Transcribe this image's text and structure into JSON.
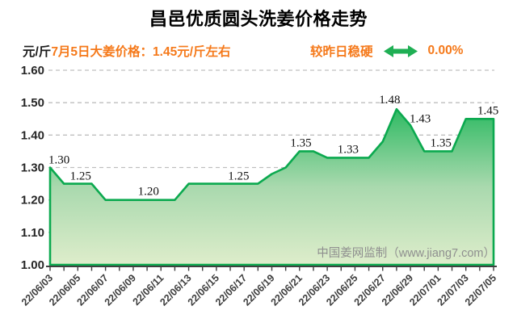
{
  "title": "昌邑优质圆头洗姜价格走势",
  "header": {
    "unit_label": "元/斤",
    "price_note": "7月5日大姜价格：1.45元/斤左右",
    "trend_label": "较昨日稳硬",
    "trend_arrow_icon": "double-headed-horizontal-arrow",
    "trend_percent": "0.00%"
  },
  "watermark": "中国姜网监制（www.jiang7.com）",
  "colors": {
    "accent_orange": "#F5791A",
    "line_green": "#0BA94F",
    "arrow_green": "#1FAF54",
    "fill_top": "#2FBA63",
    "fill_mid": "#A9D9AE",
    "fill_bottom": "#DEEDCB",
    "grid": "#BFBFBF",
    "axis": "#404040",
    "title_black": "#000000"
  },
  "chart_data": {
    "type": "area",
    "title": "昌邑优质圆头洗姜价格走势",
    "ylabel_unit": "元/斤",
    "ylim": [
      1.0,
      1.6
    ],
    "y_ticks": [
      "1.60",
      "1.50",
      "1.40",
      "1.30",
      "1.20",
      "1.10",
      "1.00"
    ],
    "grid": "horizontal-dashed",
    "legend": "none",
    "x_label_every": 2,
    "x": [
      "22/06/03",
      "22/06/04",
      "22/06/05",
      "22/06/06",
      "22/06/07",
      "22/06/08",
      "22/06/09",
      "22/06/10",
      "22/06/11",
      "22/06/12",
      "22/06/13",
      "22/06/14",
      "22/06/15",
      "22/06/16",
      "22/06/17",
      "22/06/18",
      "22/06/19",
      "22/06/20",
      "22/06/21",
      "22/06/22",
      "22/06/23",
      "22/06/24",
      "22/06/25",
      "22/06/26",
      "22/06/27",
      "22/06/28",
      "22/06/29",
      "22/06/30",
      "22/07/01",
      "22/07/02",
      "22/07/03",
      "22/07/04",
      "22/07/05"
    ],
    "values": [
      1.3,
      1.25,
      1.25,
      1.25,
      1.2,
      1.2,
      1.2,
      1.2,
      1.2,
      1.2,
      1.25,
      1.25,
      1.25,
      1.25,
      1.25,
      1.25,
      1.28,
      1.3,
      1.35,
      1.35,
      1.33,
      1.33,
      1.33,
      1.33,
      1.38,
      1.48,
      1.43,
      1.35,
      1.35,
      1.35,
      1.45,
      1.45,
      1.45
    ],
    "point_labels": [
      {
        "at": 0.65,
        "value": 1.3,
        "text": "1.30",
        "dy": -5
      },
      {
        "at": 2.2,
        "value": 1.25,
        "text": "1.25",
        "dy": -5
      },
      {
        "at": 7.1,
        "value": 1.2,
        "text": "1.20",
        "dy": -6
      },
      {
        "at": 13.6,
        "value": 1.25,
        "text": "1.25",
        "dy": -5
      },
      {
        "at": 18.1,
        "value": 1.35,
        "text": "1.35",
        "dy": -6
      },
      {
        "at": 21.5,
        "value": 1.33,
        "text": "1.33",
        "dy": -6
      },
      {
        "at": 24.5,
        "value": 1.48,
        "text": "1.48",
        "dy": -7
      },
      {
        "at": 26.7,
        "value": 1.43,
        "text": "1.43",
        "dy": -4
      },
      {
        "at": 28.2,
        "value": 1.35,
        "text": "1.35",
        "dy": -6
      },
      {
        "at": 31.6,
        "value": 1.45,
        "text": "1.45",
        "dy": -6
      }
    ]
  }
}
